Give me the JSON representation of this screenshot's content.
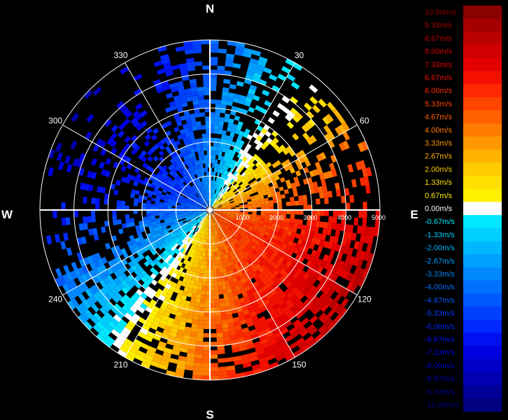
{
  "chart_data": {
    "type": "heatmap",
    "subtype": "polar-radial-velocity-ppi",
    "title": "",
    "cardinal_labels": {
      "north": "N",
      "east": "E",
      "south": "S",
      "west": "W"
    },
    "azimuth_labels": [
      {
        "deg": 30,
        "text": "30"
      },
      {
        "deg": 60,
        "text": "60"
      },
      {
        "deg": 120,
        "text": "120"
      },
      {
        "deg": 150,
        "text": "150"
      },
      {
        "deg": 210,
        "text": "210"
      },
      {
        "deg": 240,
        "text": "240"
      },
      {
        "deg": 300,
        "text": "300"
      },
      {
        "deg": 330,
        "text": "330"
      }
    ],
    "range_labels": [
      {
        "value": 1000,
        "text": "1000"
      },
      {
        "value": 2000,
        "text": "2000"
      },
      {
        "value": 3000,
        "text": "3000"
      },
      {
        "value": 4000,
        "text": "4000"
      },
      {
        "value": 5000,
        "text": "5000"
      }
    ],
    "range_max": 5000,
    "colorbar": {
      "unit": "m/s",
      "min": -10,
      "max": 10,
      "entries": [
        {
          "label": "10.00m/s",
          "value": 10.0,
          "color": "#8b0000"
        },
        {
          "label": "9.33m/s",
          "value": 9.33,
          "color": "#a50000"
        },
        {
          "label": "8.67m/s",
          "value": 8.67,
          "color": "#bb0000"
        },
        {
          "label": "8.00m/s",
          "value": 8.0,
          "color": "#d00000"
        },
        {
          "label": "7.33m/s",
          "value": 7.33,
          "color": "#e40000"
        },
        {
          "label": "6.67m/s",
          "value": 6.67,
          "color": "#f41000"
        },
        {
          "label": "6.00m/s",
          "value": 6.0,
          "color": "#ff2800"
        },
        {
          "label": "5.33m/s",
          "value": 5.33,
          "color": "#ff4400"
        },
        {
          "label": "4.67m/s",
          "value": 4.67,
          "color": "#ff6000"
        },
        {
          "label": "4.00m/s",
          "value": 4.0,
          "color": "#ff7c00"
        },
        {
          "label": "3.33m/s",
          "value": 3.33,
          "color": "#ff9800"
        },
        {
          "label": "2.67m/s",
          "value": 2.67,
          "color": "#ffb200"
        },
        {
          "label": "2.00m/s",
          "value": 2.0,
          "color": "#ffcc00"
        },
        {
          "label": "1.33m/s",
          "value": 1.33,
          "color": "#ffe000"
        },
        {
          "label": "0.67m/s",
          "value": 0.67,
          "color": "#fff000"
        },
        {
          "label": "0.00m/s",
          "value": 0.0,
          "color": "#ffffff"
        },
        {
          "label": "-0.67m/s",
          "value": -0.67,
          "color": "#00e8ff"
        },
        {
          "label": "-1.33m/s",
          "value": -1.33,
          "color": "#00d0ff"
        },
        {
          "label": "-2.00m/s",
          "value": -2.0,
          "color": "#00b8ff"
        },
        {
          "label": "-2.67m/s",
          "value": -2.67,
          "color": "#00a0ff"
        },
        {
          "label": "-3.33m/s",
          "value": -3.33,
          "color": "#0088ff"
        },
        {
          "label": "-4.00m/s",
          "value": -4.0,
          "color": "#0070ff"
        },
        {
          "label": "-4.67m/s",
          "value": -4.67,
          "color": "#0058ff"
        },
        {
          "label": "-5.33m/s",
          "value": -5.33,
          "color": "#0040ff"
        },
        {
          "label": "-6.00m/s",
          "value": -6.0,
          "color": "#0028ff"
        },
        {
          "label": "-6.67m/s",
          "value": -6.67,
          "color": "#0010f0"
        },
        {
          "label": "-7.33m/s",
          "value": -7.33,
          "color": "#0000e0"
        },
        {
          "label": "-8.00m/s",
          "value": -8.0,
          "color": "#0000c8"
        },
        {
          "label": "-8.67m/s",
          "value": -8.67,
          "color": "#0000b0"
        },
        {
          "label": "-9.33m/s",
          "value": -9.33,
          "color": "#000098"
        },
        {
          "label": "-10.00m/s",
          "value": -10.0,
          "color": "#000080"
        }
      ]
    },
    "field_model": {
      "description_of_pattern": "approaching (negative) velocities north-west half, receding (positive) south-east half; zero line along N-S axis tilted",
      "wind_from_deg": 305,
      "peak_speed_mps": 8.5
    }
  }
}
